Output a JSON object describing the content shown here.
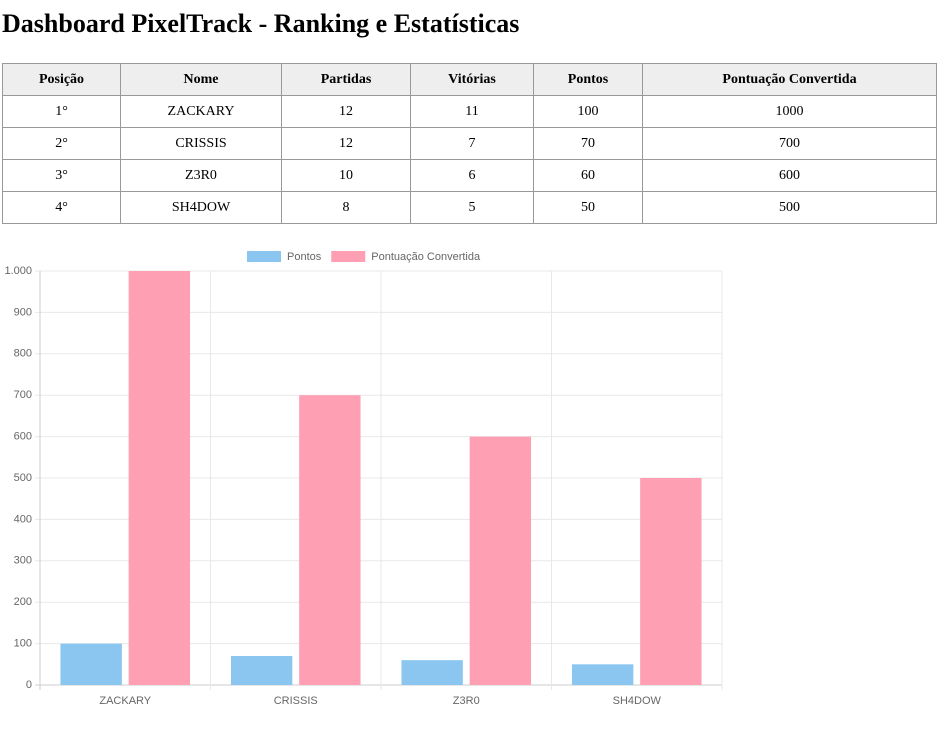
{
  "title": "Dashboard PixelTrack - Ranking e Estatísticas",
  "table": {
    "headers": [
      "Posição",
      "Nome",
      "Partidas",
      "Vitórias",
      "Pontos",
      "Pontuação Convertida"
    ],
    "rows": [
      [
        "1°",
        "ZACKARY",
        12,
        11,
        100,
        1000
      ],
      [
        "2°",
        "CRISSIS",
        12,
        7,
        70,
        700
      ],
      [
        "3°",
        "Z3R0",
        10,
        6,
        60,
        600
      ],
      [
        "4°",
        "SH4DOW",
        8,
        5,
        50,
        500
      ]
    ]
  },
  "chart_data": {
    "type": "bar",
    "categories": [
      "ZACKARY",
      "CRISSIS",
      "Z3R0",
      "SH4DOW"
    ],
    "series": [
      {
        "name": "Pontos",
        "color": "#8ac6f0",
        "values": [
          100,
          70,
          60,
          50
        ]
      },
      {
        "name": "Pontuação Convertida",
        "color": "#ff9fb3",
        "values": [
          1000,
          700,
          600,
          500
        ]
      }
    ],
    "ylim": [
      0,
      1000
    ],
    "yticks": [
      0,
      100,
      200,
      300,
      400,
      500,
      600,
      700,
      800,
      900,
      {
        "value": 1000,
        "label": "1.000"
      }
    ],
    "grid": true,
    "legend": "top"
  }
}
